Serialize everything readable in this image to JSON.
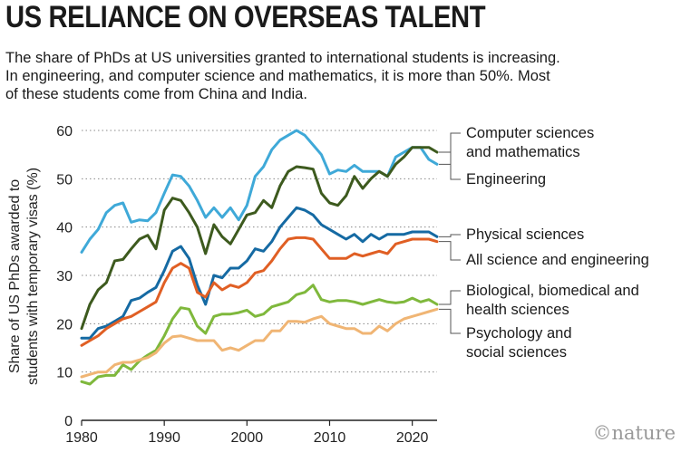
{
  "title": "US RELIANCE ON OVERSEAS TALENT",
  "subtitle_lines": [
    "The share of PhDs at US universities granted to international students is increasing.",
    "In engineering, and computer science and mathematics, it is more than 50%. Most",
    "of these students come from China and India."
  ],
  "brand": "©nature",
  "chart_data": {
    "type": "line",
    "ylabel": [
      "Share of US PhDs awarded to",
      "students with temporary visas (%)"
    ],
    "xlabel": "",
    "xlim": [
      1980,
      2023
    ],
    "ylim": [
      0,
      60
    ],
    "xticks": [
      1980,
      1990,
      2000,
      2010,
      2020
    ],
    "yticks": [
      0,
      10,
      20,
      30,
      40,
      50,
      60
    ],
    "grid": "dotted horizontal",
    "legend": "right, labels beside line ends",
    "x": [
      1980,
      1981,
      1982,
      1983,
      1984,
      1985,
      1986,
      1987,
      1988,
      1989,
      1990,
      1991,
      1992,
      1993,
      1994,
      1995,
      1996,
      1997,
      1998,
      1999,
      2000,
      2001,
      2002,
      2003,
      2004,
      2005,
      2006,
      2007,
      2008,
      2009,
      2010,
      2011,
      2012,
      2013,
      2014,
      2015,
      2016,
      2017,
      2018,
      2019,
      2020,
      2021,
      2022,
      2023
    ],
    "series": [
      {
        "name": "Computer sciences and mathematics",
        "label_lines": [
          "Computer sciences",
          "and mathematics"
        ],
        "color": "#3fa9d8",
        "values": [
          34.8,
          37.5,
          39.5,
          43.0,
          44.5,
          45.0,
          41.0,
          41.5,
          41.3,
          43.0,
          47.0,
          50.8,
          50.5,
          48.5,
          45.5,
          42.0,
          44.0,
          42.0,
          44.0,
          41.5,
          44.5,
          50.5,
          52.5,
          56.0,
          58.0,
          59.0,
          60.0,
          59.0,
          57.0,
          55.0,
          51.0,
          51.8,
          51.5,
          52.8,
          51.5,
          51.5,
          51.5,
          50.5,
          54.5,
          55.5,
          56.5,
          56.5,
          54.0,
          53.0
        ]
      },
      {
        "name": "Engineering",
        "label_lines": [
          "Engineering"
        ],
        "color": "#3d5a1e",
        "values": [
          19.0,
          24.0,
          27.0,
          28.5,
          33.0,
          33.3,
          35.5,
          37.5,
          38.3,
          35.5,
          43.5,
          46.0,
          45.5,
          43.0,
          40.0,
          34.5,
          40.5,
          38.0,
          36.5,
          39.5,
          42.5,
          43.0,
          45.5,
          44.0,
          48.5,
          51.5,
          52.5,
          52.3,
          52.0,
          47.0,
          45.0,
          44.5,
          46.5,
          50.5,
          48.0,
          50.0,
          51.5,
          50.5,
          53.0,
          54.5,
          56.5,
          56.5,
          56.5,
          55.5
        ]
      },
      {
        "name": "Physical sciences",
        "label_lines": [
          "Physical sciences"
        ],
        "color": "#156aa3",
        "values": [
          17.0,
          17.0,
          19.0,
          19.5,
          20.5,
          21.5,
          24.8,
          25.3,
          26.5,
          27.5,
          31.0,
          35.0,
          36.0,
          33.5,
          28.0,
          24.0,
          30.0,
          29.5,
          31.5,
          31.5,
          33.0,
          35.5,
          35.0,
          37.0,
          40.0,
          42.0,
          44.0,
          43.5,
          42.5,
          40.5,
          39.5,
          38.5,
          37.5,
          38.5,
          37.0,
          38.5,
          37.5,
          38.5,
          38.5,
          38.5,
          39.0,
          39.0,
          39.0,
          38.0
        ]
      },
      {
        "name": "All science and engineering",
        "label_lines": [
          "All science and engineering"
        ],
        "color": "#e05f24",
        "values": [
          15.5,
          16.5,
          17.5,
          19.0,
          20.0,
          21.0,
          21.5,
          22.5,
          23.5,
          24.5,
          28.5,
          31.5,
          32.5,
          31.5,
          26.5,
          25.5,
          28.5,
          27.0,
          28.0,
          27.5,
          28.5,
          30.5,
          31.0,
          33.0,
          35.5,
          37.5,
          37.8,
          37.8,
          37.5,
          35.5,
          33.5,
          33.5,
          33.5,
          34.5,
          34.0,
          34.5,
          35.0,
          34.5,
          36.5,
          37.0,
          37.5,
          37.5,
          37.5,
          37.0
        ]
      },
      {
        "name": "Biological, biomedical and health sciences",
        "label_lines": [
          "Biological, biomedical and",
          "health sciences"
        ],
        "color": "#7fb83c",
        "values": [
          8.0,
          7.5,
          9.0,
          9.3,
          9.3,
          11.5,
          10.5,
          12.3,
          13.5,
          14.5,
          17.5,
          21.0,
          23.3,
          23.0,
          19.5,
          18.0,
          21.5,
          22.0,
          22.0,
          22.3,
          22.8,
          21.5,
          22.0,
          23.5,
          24.0,
          24.5,
          26.0,
          26.5,
          28.0,
          25.0,
          24.5,
          24.8,
          24.8,
          24.5,
          24.0,
          24.5,
          25.0,
          24.5,
          24.3,
          24.5,
          25.3,
          24.5,
          25.0,
          24.0
        ]
      },
      {
        "name": "Psychology and social sciences",
        "label_lines": [
          "Psychology and",
          "social sciences"
        ],
        "color": "#f0b574",
        "values": [
          9.0,
          9.5,
          10.0,
          10.0,
          11.5,
          12.0,
          12.0,
          12.5,
          13.0,
          14.0,
          16.0,
          17.3,
          17.5,
          17.0,
          16.5,
          16.5,
          16.5,
          14.5,
          15.0,
          14.5,
          15.5,
          16.5,
          16.5,
          18.5,
          18.5,
          20.5,
          20.5,
          20.3,
          21.0,
          21.5,
          20.0,
          19.5,
          19.0,
          19.0,
          18.0,
          18.0,
          19.5,
          18.5,
          20.0,
          21.0,
          21.5,
          22.0,
          22.5,
          23.0
        ]
      }
    ]
  }
}
